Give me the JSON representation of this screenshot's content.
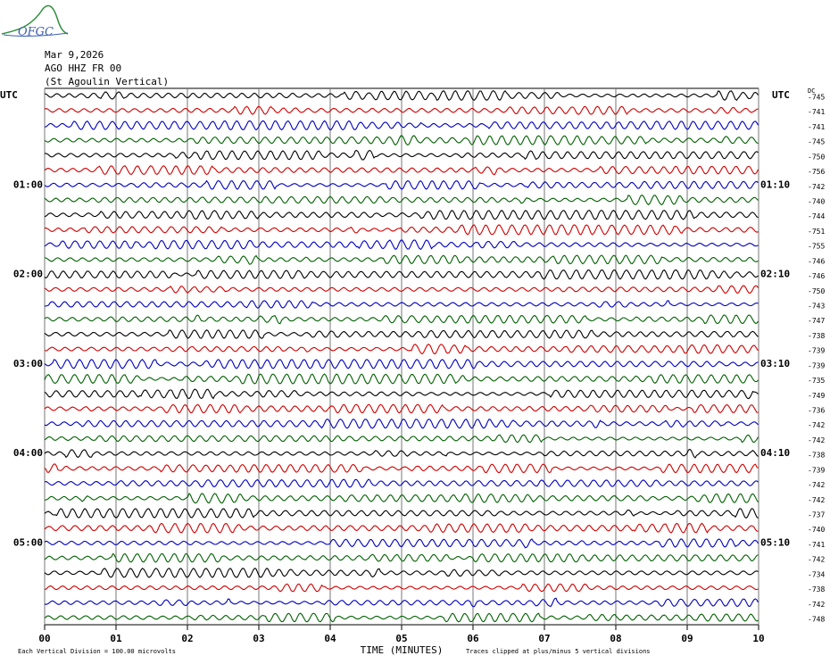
{
  "chart_data": {
    "type": "helicorder",
    "logo": "OFGC",
    "title_lines": [
      "Mar 9,2026",
      "AGO HHZ FR 00",
      "(St Agoulin Vertical)"
    ],
    "left_axis_label": "UTC",
    "right_axis_label": "UTC",
    "dc_label": "DC",
    "xlabel": "TIME (MINUTES)",
    "xlim": [
      0,
      10
    ],
    "xticks": [
      {
        "value": 0,
        "label": "00"
      },
      {
        "value": 1,
        "label": "01"
      },
      {
        "value": 2,
        "label": "02"
      },
      {
        "value": 3,
        "label": "03"
      },
      {
        "value": 4,
        "label": "04"
      },
      {
        "value": 5,
        "label": "05"
      },
      {
        "value": 6,
        "label": "06"
      },
      {
        "value": 7,
        "label": "07"
      },
      {
        "value": 8,
        "label": "08"
      },
      {
        "value": 9,
        "label": "09"
      },
      10
    ],
    "row_colors": [
      "#000000",
      "#d00000",
      "#0000c0",
      "#006000"
    ],
    "left_row_labels": [
      null,
      null,
      null,
      null,
      null,
      null,
      "01:00",
      null,
      null,
      null,
      null,
      null,
      "02:00",
      null,
      null,
      null,
      null,
      null,
      "03:00",
      null,
      null,
      null,
      null,
      null,
      "04:00",
      null,
      null,
      null,
      null,
      null,
      "05:00",
      null,
      null,
      null,
      null,
      null
    ],
    "right_row_labels": [
      null,
      null,
      null,
      null,
      null,
      null,
      "01:10",
      null,
      null,
      null,
      null,
      null,
      "02:10",
      null,
      null,
      null,
      null,
      null,
      "03:10",
      null,
      null,
      null,
      null,
      null,
      "04:10",
      null,
      null,
      null,
      null,
      null,
      "05:10",
      null,
      null,
      null,
      null,
      null
    ],
    "dc_offsets": [
      -745,
      -741,
      -741,
      -745,
      -750,
      -756,
      -742,
      -740,
      -744,
      -751,
      -755,
      -746,
      -746,
      -750,
      -743,
      -747,
      -738,
      -739,
      -739,
      -735,
      -749,
      -736,
      -742,
      -742,
      -738,
      -739,
      -742,
      -742,
      -737,
      -740,
      -741,
      -742,
      -734,
      -738,
      -742,
      -748
    ],
    "footnotes": [
      "Each Vertical Division =  100.00 microvolts",
      "Traces clipped at plus/minus 5 vertical divisions"
    ]
  }
}
